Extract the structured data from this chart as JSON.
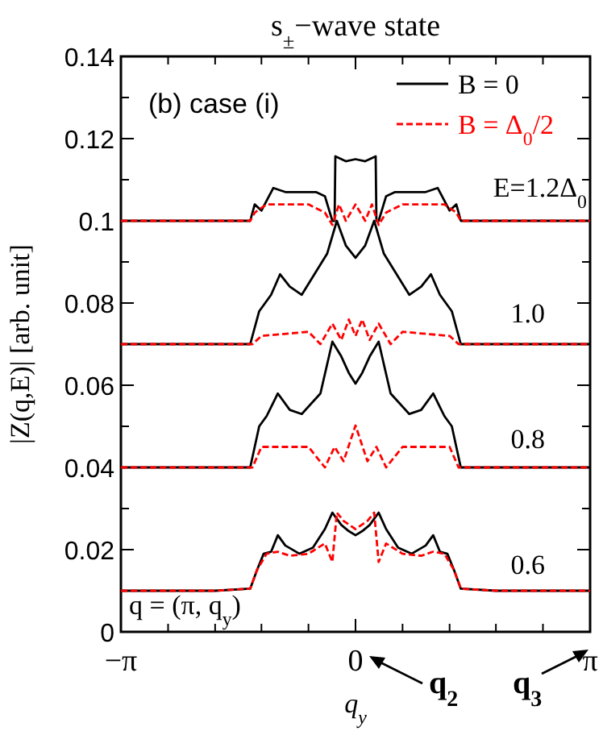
{
  "chart_data": {
    "type": "line",
    "title": "s$_{±}$−wave state",
    "xlabel": "q$_{y}$",
    "ylabel": "|Z(q,E)| [arb. unit]",
    "xlim": [
      -3.1416,
      3.1416
    ],
    "xticks": [
      {
        "value": -3.1416,
        "label": "−π"
      },
      {
        "value": -2.51,
        "label": null
      },
      {
        "value": -1.88,
        "label": null
      },
      {
        "value": -1.26,
        "label": null
      },
      {
        "value": -0.63,
        "label": null
      },
      0,
      {
        "value": 0.63,
        "label": null
      },
      {
        "value": 1.26,
        "label": null
      },
      {
        "value": 1.88,
        "label": null
      },
      {
        "value": 2.51,
        "label": null
      },
      {
        "value": 3.1416,
        "label": "π"
      }
    ],
    "ylim": [
      0,
      0.14
    ],
    "yticks": [
      0,
      {
        "value": 0.01,
        "label": null
      },
      0.02,
      {
        "value": 0.03,
        "label": null
      },
      0.04,
      {
        "value": 0.05,
        "label": null
      },
      0.06,
      {
        "value": 0.07,
        "label": null
      },
      0.08,
      {
        "value": 0.09,
        "label": null
      },
      0.1,
      {
        "value": 0.11,
        "label": null
      },
      0.12,
      {
        "value": 0.13,
        "label": null
      },
      0.14
    ],
    "legend": "top right",
    "grid": false,
    "marker": "none",
    "series": [
      {
        "name": "B = 0",
        "color": "#000000",
        "line_style": "solid",
        "x": [
          -3.14,
          -2.51,
          -1.88,
          -1.57,
          -1.41,
          -1.35,
          -1.26,
          -1.1,
          -0.94,
          -0.63,
          -0.53,
          -0.41,
          -0.31,
          -0.28,
          -0.27,
          -0.13,
          0,
          0.13,
          0.27,
          0.28,
          0.31,
          0.41,
          0.53,
          0.63,
          0.94,
          1.1,
          1.26,
          1.35,
          1.41,
          1.57,
          1.88,
          2.51,
          3.14
        ],
        "values": [
          0.1,
          0.1,
          0.1,
          0.1,
          0.1,
          0.104,
          0.1025,
          0.108,
          0.107,
          0.107,
          0.107,
          0.106,
          0.1,
          0.1,
          0.1157,
          0.1145,
          0.115,
          0.1145,
          0.1157,
          0.1,
          0.1,
          0.106,
          0.107,
          0.107,
          0.107,
          0.108,
          0.1025,
          0.104,
          0.1,
          0.1,
          0.1,
          0.1,
          0.1
        ]
      },
      {
        "name": "B = Δ$_{0}$/2",
        "color": "#ff0000",
        "line_style": "dashed",
        "x": [
          -3.14,
          -1.88,
          -1.41,
          -1.35,
          -1.19,
          -0.63,
          -0.41,
          -0.31,
          -0.22,
          -0.13,
          0,
          0.13,
          0.22,
          0.31,
          0.41,
          0.63,
          1.19,
          1.35,
          1.41,
          1.88,
          3.14
        ],
        "values": [
          0.1,
          0.1,
          0.1,
          0.102,
          0.104,
          0.104,
          0.102,
          0.099,
          0.104,
          0.1,
          0.104,
          0.1,
          0.104,
          0.099,
          0.102,
          0.104,
          0.104,
          0.102,
          0.1,
          0.1,
          0.1
        ]
      },
      {
        "color": "#000000",
        "line_style": "solid",
        "x": [
          -3.14,
          -1.88,
          -1.41,
          -1.29,
          -1.13,
          -1.01,
          -0.88,
          -0.72,
          -0.38,
          -0.25,
          -0.13,
          0,
          0.13,
          0.25,
          0.38,
          0.72,
          0.88,
          1.01,
          1.13,
          1.29,
          1.41,
          1.88,
          3.14
        ],
        "values": [
          0.07,
          0.07,
          0.07,
          0.078,
          0.082,
          0.087,
          0.084,
          0.082,
          0.092,
          0.1,
          0.094,
          0.091,
          0.094,
          0.1,
          0.092,
          0.082,
          0.084,
          0.087,
          0.082,
          0.078,
          0.07,
          0.07,
          0.07
        ]
      },
      {
        "color": "#ff0000",
        "line_style": "dashed",
        "x": [
          -3.14,
          -1.88,
          -1.38,
          -1.26,
          -0.63,
          -0.47,
          -0.31,
          -0.19,
          -0.09,
          0,
          0.09,
          0.19,
          0.31,
          0.47,
          0.63,
          1.26,
          1.38,
          1.88,
          3.14
        ],
        "values": [
          0.07,
          0.07,
          0.07,
          0.072,
          0.073,
          0.07,
          0.075,
          0.071,
          0.076,
          0.072,
          0.076,
          0.071,
          0.075,
          0.07,
          0.073,
          0.072,
          0.07,
          0.07,
          0.07
        ]
      },
      {
        "color": "#000000",
        "line_style": "solid",
        "x": [
          -3.14,
          -1.88,
          -1.41,
          -1.29,
          -1.19,
          -1.04,
          -0.88,
          -0.72,
          -0.47,
          -0.31,
          -0.19,
          -0.09,
          0,
          0.09,
          0.19,
          0.31,
          0.47,
          0.72,
          0.88,
          1.04,
          1.19,
          1.29,
          1.41,
          1.88,
          3.14
        ],
        "values": [
          0.04,
          0.04,
          0.04,
          0.05,
          0.0525,
          0.058,
          0.054,
          0.053,
          0.058,
          0.0706,
          0.067,
          0.063,
          0.0604,
          0.063,
          0.067,
          0.0706,
          0.058,
          0.053,
          0.054,
          0.058,
          0.0525,
          0.05,
          0.04,
          0.04,
          0.04
        ]
      },
      {
        "color": "#ff0000",
        "line_style": "dashed",
        "x": [
          -3.14,
          -1.88,
          -1.38,
          -1.26,
          -0.63,
          -0.41,
          -0.28,
          -0.16,
          0,
          0.16,
          0.28,
          0.41,
          0.63,
          1.26,
          1.38,
          1.88,
          3.14
        ],
        "values": [
          0.04,
          0.04,
          0.04,
          0.045,
          0.045,
          0.04,
          0.045,
          0.0415,
          0.0502,
          0.0415,
          0.045,
          0.04,
          0.045,
          0.045,
          0.04,
          0.04,
          0.04
        ]
      },
      {
        "color": "#000000",
        "line_style": "solid",
        "x": [
          -3.14,
          -1.88,
          -1.41,
          -1.32,
          -1.23,
          -1.13,
          -1.04,
          -0.94,
          -0.75,
          -0.57,
          -0.41,
          -0.31,
          -0.19,
          -0.09,
          0,
          0.09,
          0.19,
          0.31,
          0.41,
          0.57,
          0.75,
          0.94,
          1.04,
          1.13,
          1.23,
          1.32,
          1.41,
          1.88,
          3.14
        ],
        "values": [
          0.01,
          0.01,
          0.0105,
          0.015,
          0.019,
          0.0195,
          0.0235,
          0.021,
          0.019,
          0.0205,
          0.025,
          0.029,
          0.026,
          0.0245,
          0.0235,
          0.0245,
          0.026,
          0.029,
          0.025,
          0.0205,
          0.019,
          0.021,
          0.0235,
          0.0195,
          0.019,
          0.015,
          0.0105,
          0.01,
          0.01
        ]
      },
      {
        "color": "#ff0000",
        "line_style": "dashed",
        "x": [
          -3.14,
          -1.88,
          -1.41,
          -1.32,
          -1.19,
          -1.04,
          -0.88,
          -0.63,
          -0.41,
          -0.31,
          -0.25,
          -0.16,
          0,
          0.16,
          0.25,
          0.31,
          0.41,
          0.63,
          0.88,
          1.04,
          1.19,
          1.32,
          1.41,
          1.88,
          3.14
        ],
        "values": [
          0.01,
          0.01,
          0.0105,
          0.015,
          0.019,
          0.0195,
          0.0185,
          0.019,
          0.0215,
          0.017,
          0.029,
          0.027,
          0.025,
          0.027,
          0.029,
          0.017,
          0.0215,
          0.019,
          0.0185,
          0.0195,
          0.019,
          0.015,
          0.0105,
          0.01,
          0.01
        ]
      }
    ],
    "annotations": [
      "(b)  case (i)",
      "E=1.2Δ$_{0}$",
      "1.0",
      "0.8",
      "0.6",
      "q = (π, q$_{y}$)",
      "q$_{2}$",
      "q$_{3}$"
    ]
  }
}
